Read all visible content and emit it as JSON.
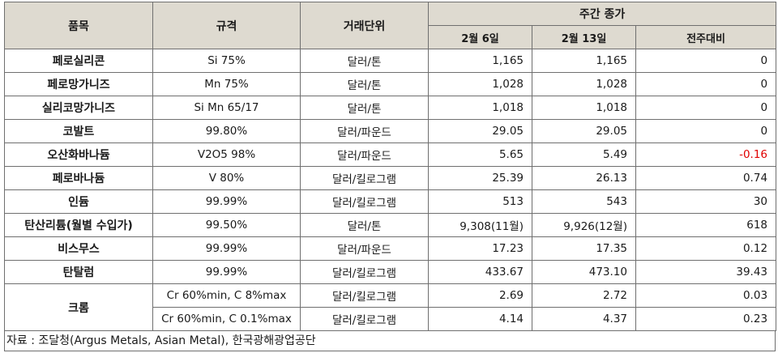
{
  "header": {
    "item": "품목",
    "spec": "규격",
    "unit": "거래단위",
    "weekly_close": "주간 종가",
    "date1": "2월 6일",
    "date2": "2월 13일",
    "change": "전주대비"
  },
  "rows": [
    {
      "item": "페로실리콘",
      "spec": "Si 75%",
      "unit": "달러/톤",
      "v1": "1,165",
      "v2": "1,165",
      "chg": "0"
    },
    {
      "item": "페로망가니즈",
      "spec": "Mn 75%",
      "unit": "달러/톤",
      "v1": "1,028",
      "v2": "1,028",
      "chg": "0"
    },
    {
      "item": "실리코망가니즈",
      "spec": "Si Mn 65/17",
      "unit": "달러/톤",
      "v1": "1,018",
      "v2": "1,018",
      "chg": "0"
    },
    {
      "item": "코발트",
      "spec": "99.80%",
      "unit": "달러/파운드",
      "v1": "29.05",
      "v2": "29.05",
      "chg": "0"
    },
    {
      "item": "오산화바나듐",
      "spec": "V2O5 98%",
      "unit": "달러/파운드",
      "v1": "5.65",
      "v2": "5.49",
      "chg": "-0.16"
    },
    {
      "item": "페로바나듐",
      "spec": "V 80%",
      "unit": "달러/킬로그램",
      "v1": "25.39",
      "v2": "26.13",
      "chg": "0.74"
    },
    {
      "item": "인듐",
      "spec": "99.99%",
      "unit": "달러/킬로그램",
      "v1": "513",
      "v2": "543",
      "chg": "30"
    },
    {
      "item": "탄산리튬(월별 수입가)",
      "spec": "99.50%",
      "unit": "달러/톤",
      "v1": "9,308(11월)",
      "v2": "9,926(12월)",
      "chg": "618"
    },
    {
      "item": "비스무스",
      "spec": "99.99%",
      "unit": "달러/파운드",
      "v1": "17.23",
      "v2": "17.35",
      "chg": "0.12"
    },
    {
      "item": "탄탈럼",
      "spec": "99.99%",
      "unit": "달러/킬로그램",
      "v1": "433.67",
      "v2": "473.10",
      "chg": "39.43"
    }
  ],
  "chrome": {
    "item": "크롬",
    "sub": [
      {
        "spec": "Cr 60%min, C 8%max",
        "unit": "달러/킬로그램",
        "v1": "2.69",
        "v2": "2.72",
        "chg": "0.03"
      },
      {
        "spec": "Cr 60%min, C 0.1%max",
        "unit": "달러/킬로그램",
        "v1": "4.14",
        "v2": "4.37",
        "chg": "0.23"
      }
    ]
  },
  "source": "자료 : 조달청(Argus Metals, Asian Metal), 한국광해광업공단"
}
